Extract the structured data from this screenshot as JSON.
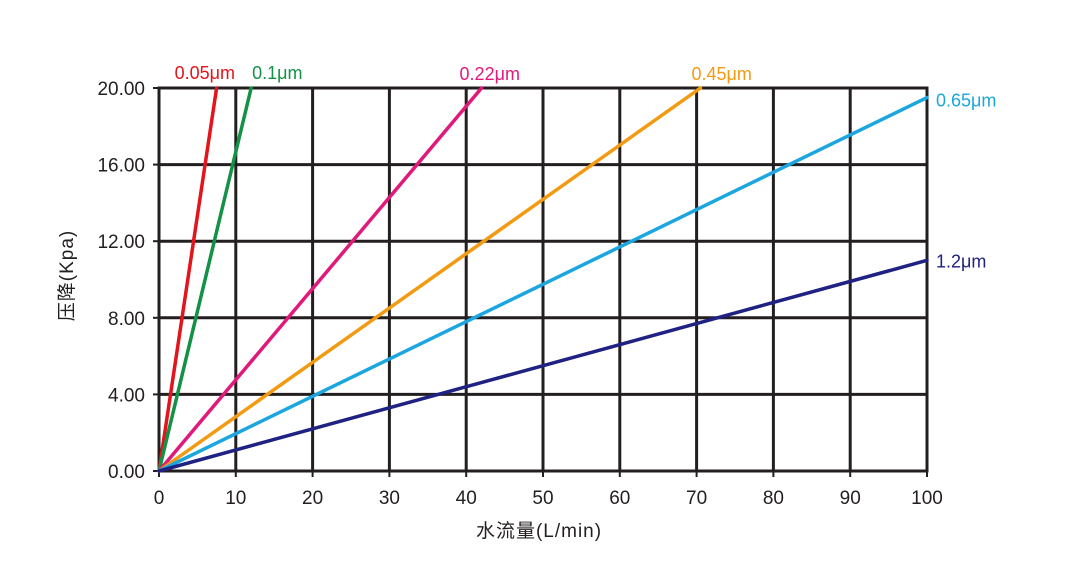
{
  "chart_data": {
    "type": "line",
    "xlabel": "水流量(L/min)",
    "ylabel": "压降(Kpa)",
    "xlim": [
      0,
      100
    ],
    "ylim": [
      0,
      20
    ],
    "xticks": [
      0,
      10,
      20,
      30,
      40,
      50,
      60,
      70,
      80,
      90,
      100
    ],
    "yticks": [
      0,
      4,
      8,
      12,
      16,
      20
    ],
    "xtick_labels": [
      "0",
      "10",
      "20",
      "30",
      "40",
      "50",
      "60",
      "70",
      "80",
      "90",
      "100"
    ],
    "ytick_labels": [
      "0.00",
      "4.00",
      "8.00",
      "12.00",
      "16.00",
      "20.00"
    ],
    "grid": true,
    "legend": "series labels at line ends",
    "series": [
      {
        "name": "0.05μm",
        "color": "#e3141b",
        "x": [
          0,
          7.5
        ],
        "y": [
          0,
          20
        ]
      },
      {
        "name": "0.1μm",
        "color": "#139146",
        "x": [
          0,
          12
        ],
        "y": [
          0,
          20
        ]
      },
      {
        "name": "0.22μm",
        "color": "#e0197a",
        "x": [
          0,
          42
        ],
        "y": [
          0,
          20
        ]
      },
      {
        "name": "0.45μm",
        "color": "#f29a11",
        "x": [
          0,
          70.5
        ],
        "y": [
          0,
          20
        ]
      },
      {
        "name": "0.65μm",
        "color": "#1ca6e0",
        "x": [
          0,
          100
        ],
        "y": [
          0,
          19.5
        ]
      },
      {
        "name": "1.2μm",
        "color": "#1f2283",
        "x": [
          0,
          100
        ],
        "y": [
          0,
          11
        ]
      }
    ]
  }
}
